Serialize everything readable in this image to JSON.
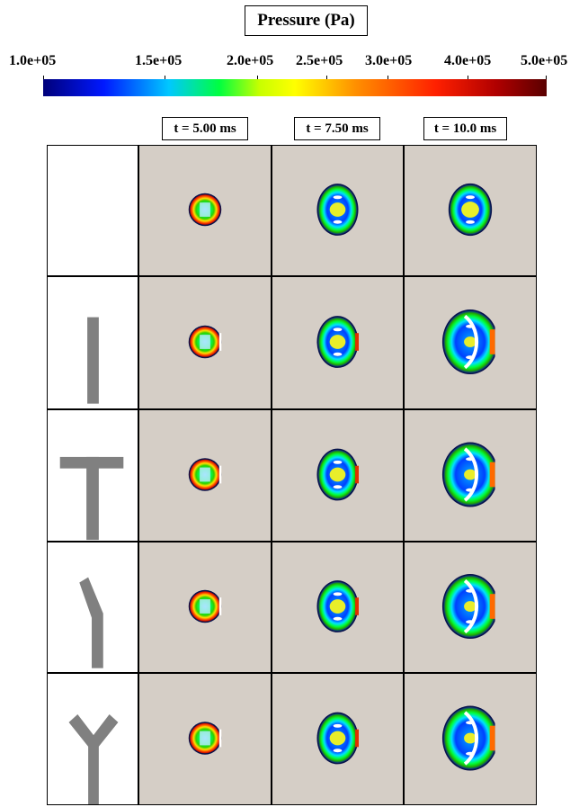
{
  "title": "Pressure (Pa)",
  "colorbar": {
    "ticks": [
      "1.0e+05",
      "1.5e+05",
      "2.0e+05",
      "2.5e+05",
      "3.0e+05",
      "4.0e+05",
      "5.0e+05"
    ],
    "colors": [
      "#00007a",
      "#0018ff",
      "#00c8ff",
      "#00ff40",
      "#ffff00",
      "#ff8000",
      "#ff0000",
      "#8b0000",
      "#5a0000"
    ]
  },
  "times": [
    "t = 5.00 ms",
    "t = 7.50 ms",
    "t = 10.0 ms"
  ],
  "rows": [
    {
      "geometry": "none"
    },
    {
      "geometry": "I-shaped wall"
    },
    {
      "geometry": "T-shaped wall"
    },
    {
      "geometry": "bent wall"
    },
    {
      "geometry": "Y-shaped wall"
    }
  ]
}
